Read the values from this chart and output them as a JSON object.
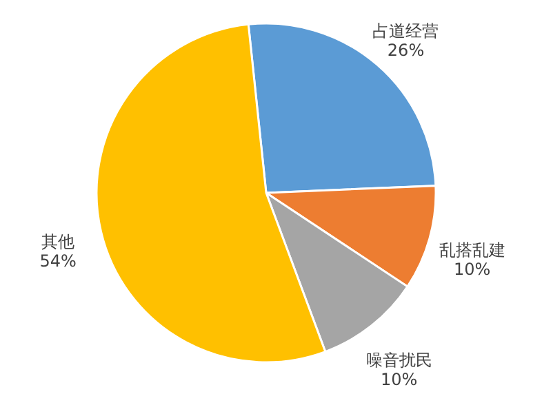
{
  "chart_data": {
    "type": "pie",
    "categories": [
      "占道经营",
      "乱搭乱建",
      "噪音扰民",
      "其他"
    ],
    "values": [
      26,
      10,
      10,
      54
    ],
    "value_labels": [
      "26%",
      "10%",
      "10%",
      "54%"
    ],
    "colors": [
      "#5b9bd5",
      "#ed7d31",
      "#a5a5a5",
      "#ffc000"
    ]
  }
}
